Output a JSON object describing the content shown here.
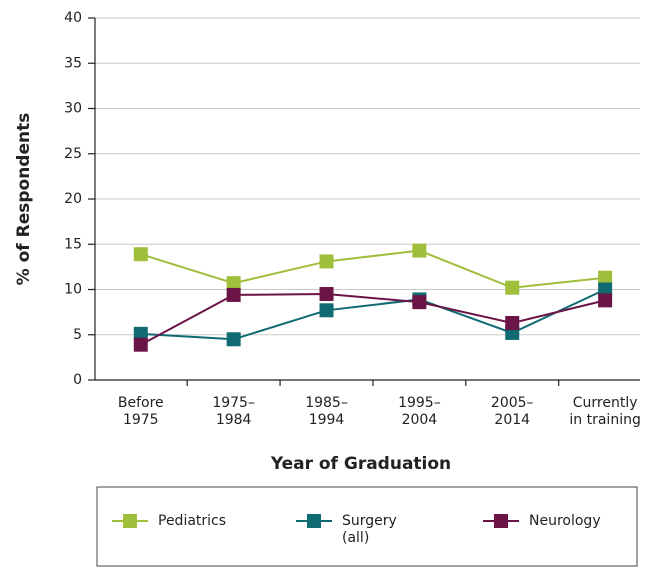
{
  "chart_data": {
    "type": "line",
    "y_label": "% of Respondents",
    "x_label": "Year of Graduation",
    "categories": [
      "Before\n1975",
      "1975–\n1984",
      "1985–\n1994",
      "1995–\n2004",
      "2005–\n2014",
      "Currently\nin training"
    ],
    "series": [
      {
        "name": "Pediatrics",
        "color": "#9fbe3a",
        "values": [
          13.9,
          10.7,
          13.1,
          14.3,
          10.2,
          11.3
        ]
      },
      {
        "name": "Surgery\n(all)",
        "color": "#0f6a72",
        "values": [
          5.1,
          4.5,
          7.7,
          8.9,
          5.2,
          10.0
        ]
      },
      {
        "name": "Neurology",
        "color": "#6b1446",
        "values": [
          3.9,
          9.4,
          9.5,
          8.6,
          6.3,
          8.8
        ]
      }
    ],
    "ylim": [
      0,
      40
    ],
    "yticks": [
      0,
      5,
      10,
      15,
      20,
      25,
      30,
      35,
      40
    ],
    "grid": true
  }
}
